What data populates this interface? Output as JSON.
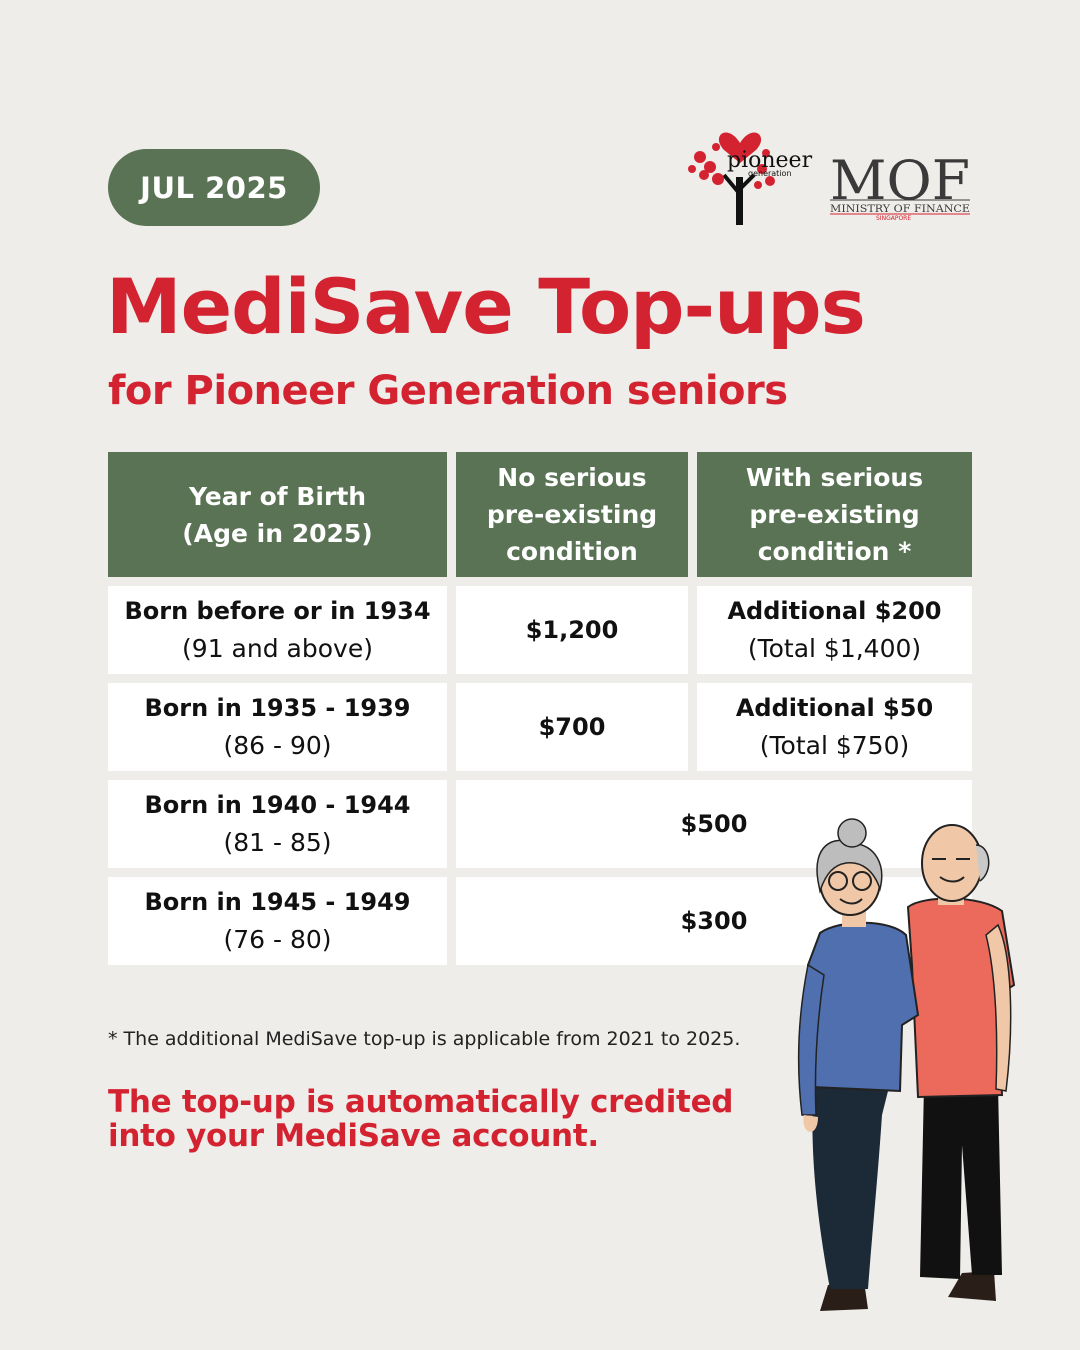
{
  "badge": "JUL 2025",
  "logos": {
    "pioneer_text": "pioneer",
    "pioneer_sub": "generation",
    "mof_text": "MOF",
    "mof_sub": "MINISTRY OF FINANCE",
    "mof_country": "SINGAPORE"
  },
  "title": "MediSave Top-ups",
  "subtitle": "for Pioneer Generation seniors",
  "table": {
    "headers": [
      [
        "Year of Birth",
        "(Age in  2025)"
      ],
      [
        "No serious",
        "pre-existing",
        "condition"
      ],
      [
        "With serious",
        "pre-existing",
        "condition *"
      ]
    ],
    "rows": [
      {
        "birth": "Born before or in 1934",
        "age": "(91 and above)",
        "no_condition": "$1,200",
        "with_condition": "Additional $200",
        "with_total": "(Total $1,400)"
      },
      {
        "birth": "Born in 1935 - 1939",
        "age": "(86 - 90)",
        "no_condition": "$700",
        "with_condition": "Additional $50",
        "with_total": "(Total $750)"
      },
      {
        "birth": "Born in 1940 - 1944",
        "age": "(81 - 85)",
        "amount": "$500"
      },
      {
        "birth": "Born in 1945 - 1949",
        "age": "(76 - 80)",
        "amount": "$300"
      }
    ]
  },
  "footnote": "* The additional MediSave top-up is applicable from 2021 to 2025.",
  "credit_note": [
    "The top-up is automatically credited",
    "into your MediSave account."
  ],
  "colors": {
    "accent_red": "#d42330",
    "header_green": "#5a7354",
    "background": "#efedea"
  }
}
